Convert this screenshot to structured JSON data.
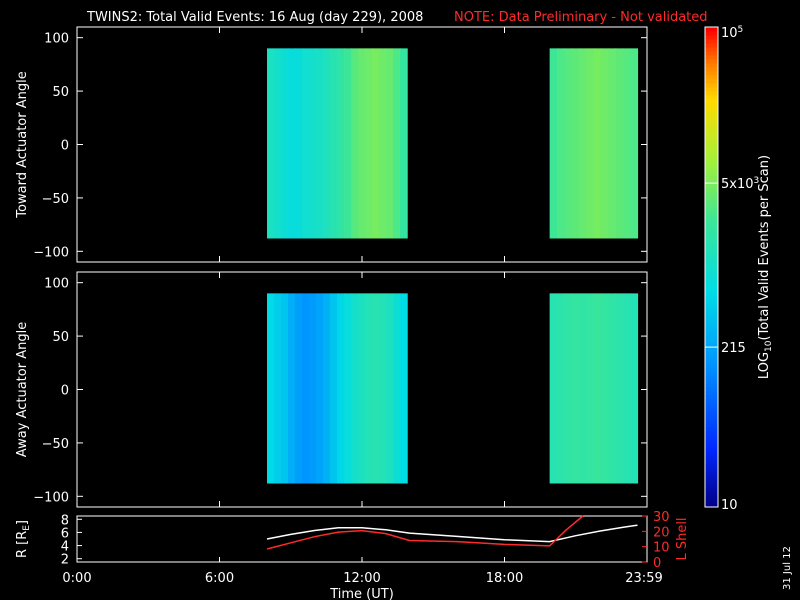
{
  "header": {
    "title": "TWINS2: Total Valid Events: 16 Aug (day 229), 2008",
    "note": "NOTE: Data Preliminary - Not validated",
    "note_color": "#ff2a2a"
  },
  "footer": {
    "date_stamp": "31 Jul 12"
  },
  "chart_data": [
    {
      "type": "heatmap",
      "ylabel": "Toward Actuator Angle",
      "ylim": [
        -110,
        110
      ],
      "yticks": [
        100,
        50,
        0,
        -50,
        -100
      ],
      "xlim": [
        0,
        24
      ],
      "angle_range": [
        -88,
        90
      ],
      "time_blocks": [
        {
          "start": 8.0,
          "end": 13.9,
          "levels": [
            0.52,
            0.5,
            0.48,
            0.47,
            0.47,
            0.49,
            0.5,
            0.51,
            0.53,
            0.55,
            0.57,
            0.6,
            0.63,
            0.65,
            0.66,
            0.67,
            0.66,
            0.65,
            0.62,
            0.58
          ]
        },
        {
          "start": 19.9,
          "end": 23.6,
          "levels": [
            0.6,
            0.62,
            0.63,
            0.64,
            0.65,
            0.66,
            0.67,
            0.66,
            0.65,
            0.64,
            0.63,
            0.62
          ]
        }
      ]
    },
    {
      "type": "heatmap",
      "ylabel": "Away Actuator Angle",
      "ylim": [
        -110,
        110
      ],
      "yticks": [
        100,
        50,
        0,
        -50,
        -100
      ],
      "xlim": [
        0,
        24
      ],
      "angle_range": [
        -88,
        90
      ],
      "time_blocks": [
        {
          "start": 8.0,
          "end": 13.9,
          "levels": [
            0.45,
            0.42,
            0.4,
            0.35,
            0.32,
            0.3,
            0.31,
            0.33,
            0.36,
            0.4,
            0.44,
            0.47,
            0.5,
            0.52,
            0.54,
            0.55,
            0.54,
            0.52,
            0.48,
            0.45
          ]
        },
        {
          "start": 19.9,
          "end": 23.6,
          "levels": [
            0.55,
            0.56,
            0.57,
            0.58,
            0.57,
            0.58,
            0.59,
            0.58,
            0.57,
            0.56,
            0.55,
            0.54
          ]
        }
      ]
    },
    {
      "type": "colorbar",
      "label": "LOG10(Total Valid Events per Scan)",
      "label_main": "LOG",
      "label_sub": "10",
      "label_rest": "(Total Valid Events per Scan)",
      "range": [
        10,
        100000
      ],
      "ticks": [
        "10",
        "215",
        "5x10",
        "10"
      ],
      "tick_superscripts": [
        "",
        "",
        "3",
        "5"
      ],
      "tick_values": [
        10,
        215,
        5000,
        100000
      ]
    },
    {
      "type": "line",
      "ylabel": "R [RE]",
      "ylabel_main": "R [R",
      "ylabel_sub": "E",
      "ylabel_end": "]",
      "ylim": [
        1.5,
        8.5
      ],
      "yticks": [
        8,
        6,
        4,
        2
      ],
      "y2label": "L Shell",
      "y2lim": [
        0,
        30
      ],
      "y2ticks": [
        30,
        20,
        10,
        0
      ],
      "xlabel": "Time (UT)",
      "xlim": [
        0,
        24
      ],
      "xticklabels": [
        "0:00",
        "6:00",
        "12:00",
        "18:00",
        "23:59"
      ],
      "xtickvalues": [
        0,
        6,
        12,
        18,
        24
      ],
      "series": [
        {
          "axis": "left",
          "color": "#ffffff",
          "x": [
            8.0,
            9.0,
            10.0,
            11.0,
            12.0,
            13.0,
            14.0,
            16.0,
            18.0,
            19.9,
            21.0,
            22.0,
            23.0,
            23.6
          ],
          "y": [
            5.0,
            5.7,
            6.3,
            6.7,
            6.7,
            6.4,
            5.9,
            5.4,
            4.9,
            4.6,
            5.5,
            6.2,
            6.8,
            7.1
          ]
        },
        {
          "axis": "right",
          "color": "#ff2a2a",
          "x": [
            8.0,
            9.0,
            10.0,
            11.0,
            12.0,
            13.0,
            14.0,
            16.0,
            18.0,
            19.9,
            20.6,
            21.3
          ],
          "y": [
            8.5,
            12.5,
            16.5,
            19.5,
            20.5,
            18.5,
            14.0,
            13.3,
            11.5,
            10.5,
            21.0,
            31.0
          ]
        }
      ]
    }
  ]
}
